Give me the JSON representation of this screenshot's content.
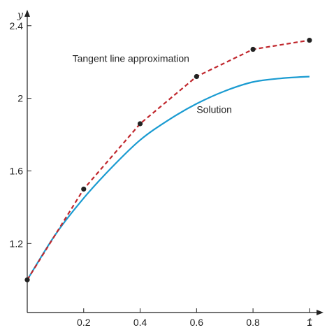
{
  "chart_data": {
    "type": "line",
    "xlabel": "t",
    "ylabel": "y",
    "xlim": [
      0,
      1.03
    ],
    "ylim": [
      0.82,
      2.48
    ],
    "x_ticks": [
      0.2,
      0.4,
      0.6,
      0.8,
      1
    ],
    "x_tick_labels": [
      "0.2",
      "0.4",
      "0.6",
      "0.8",
      "1"
    ],
    "y_ticks": [
      1.2,
      1.6,
      2,
      2.4
    ],
    "y_tick_labels": [
      "1.2",
      "1.6",
      "2",
      "2.4"
    ],
    "grid": false,
    "series": [
      {
        "name": "Solution",
        "style": "solid",
        "color": "#1a9bd1",
        "x": [
          0,
          0.1,
          0.2,
          0.3,
          0.4,
          0.5,
          0.6,
          0.7,
          0.8,
          0.9,
          1.0
        ],
        "y": [
          1.0,
          1.25,
          1.45,
          1.62,
          1.77,
          1.88,
          1.97,
          2.04,
          2.09,
          2.11,
          2.12
        ]
      },
      {
        "name": "Tangent line approximation",
        "style": "dashed",
        "color": "#c0272d",
        "marker_color": "#222222",
        "x": [
          0,
          0.2,
          0.4,
          0.6,
          0.8,
          1.0
        ],
        "y": [
          1.0,
          1.5,
          1.86,
          2.12,
          2.27,
          2.32
        ]
      }
    ],
    "annotations": [
      {
        "text": "Tangent line approximation",
        "x": 0.16,
        "y": 2.2
      },
      {
        "text": "Solution",
        "x": 0.6,
        "y": 1.92
      }
    ]
  }
}
